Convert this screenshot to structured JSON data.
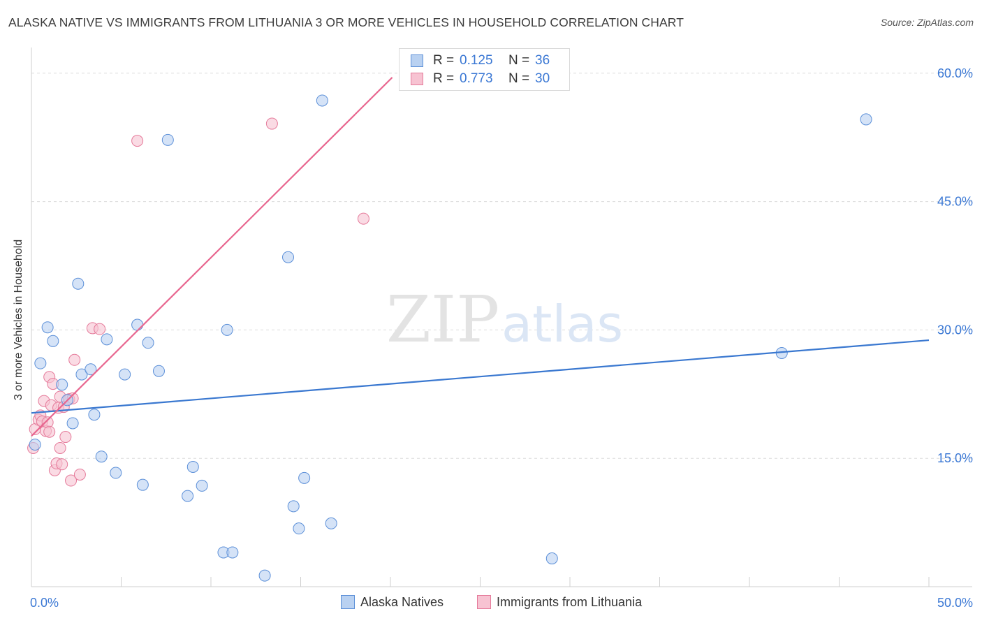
{
  "title": "ALASKA NATIVE VS IMMIGRANTS FROM LITHUANIA 3 OR MORE VEHICLES IN HOUSEHOLD CORRELATION CHART",
  "source": "Source: ZipAtlas.com",
  "watermark": {
    "zip": "ZIP",
    "atlas": "atlas"
  },
  "legend": {
    "r_label": "R =",
    "n_label": "N =",
    "series": [
      {
        "name": "Alaska Natives",
        "r": "0.125",
        "n": "36",
        "fill": "#b9d1f1",
        "stroke": "#5b8fd8"
      },
      {
        "name": "Immigrants from Lithuania",
        "r": "0.773",
        "n": "30",
        "fill": "#f7c3d2",
        "stroke": "#e57a9a"
      }
    ]
  },
  "chart_data": {
    "type": "scatter",
    "title": "ALASKA NATIVE VS IMMIGRANTS FROM LITHUANIA 3 OR MORE VEHICLES IN HOUSEHOLD CORRELATION CHART",
    "xlabel": "",
    "ylabel": "3 or more Vehicles in Household",
    "xlim": [
      0,
      50
    ],
    "ylim": [
      0,
      63
    ],
    "x_tick_labels": [
      "0.0%",
      "50.0%"
    ],
    "y_ticks": [
      15,
      30,
      45,
      60
    ],
    "y_tick_labels": [
      "15.0%",
      "30.0%",
      "45.0%",
      "60.0%"
    ],
    "grid": true,
    "series": [
      {
        "name": "Alaska Natives",
        "color": "#5b8fd8",
        "fill": "#b9d1f1",
        "trendline": {
          "x": [
            0,
            50
          ],
          "y": [
            20.3,
            28.8
          ],
          "color": "#3a78d0"
        },
        "points": [
          [
            0.2,
            16.6
          ],
          [
            0.5,
            26.1
          ],
          [
            0.9,
            30.3
          ],
          [
            1.2,
            28.7
          ],
          [
            1.7,
            23.6
          ],
          [
            2.0,
            21.8
          ],
          [
            2.3,
            19.1
          ],
          [
            2.6,
            35.4
          ],
          [
            2.8,
            24.8
          ],
          [
            3.3,
            25.4
          ],
          [
            3.5,
            20.1
          ],
          [
            3.9,
            15.2
          ],
          [
            4.2,
            28.9
          ],
          [
            4.7,
            13.3
          ],
          [
            5.2,
            24.8
          ],
          [
            5.9,
            30.6
          ],
          [
            6.2,
            11.9
          ],
          [
            6.5,
            28.5
          ],
          [
            7.1,
            25.2
          ],
          [
            7.6,
            52.2
          ],
          [
            8.7,
            10.6
          ],
          [
            9.0,
            14.0
          ],
          [
            9.5,
            11.8
          ],
          [
            10.7,
            4.0
          ],
          [
            10.9,
            30.0
          ],
          [
            11.2,
            4.0
          ],
          [
            13.0,
            1.3
          ],
          [
            14.3,
            38.5
          ],
          [
            14.6,
            9.4
          ],
          [
            14.9,
            6.8
          ],
          [
            15.2,
            12.7
          ],
          [
            16.2,
            56.8
          ],
          [
            16.7,
            7.4
          ],
          [
            29.0,
            3.3
          ],
          [
            41.8,
            27.3
          ],
          [
            46.5,
            54.6
          ]
        ]
      },
      {
        "name": "Immigrants from Lithuania",
        "color": "#e57a9a",
        "fill": "#f7c3d2",
        "trendline": {
          "x": [
            0,
            20.1
          ],
          "y": [
            17.6,
            59.5
          ],
          "color": "#e8668f"
        },
        "points": [
          [
            0.1,
            16.2
          ],
          [
            0.2,
            18.4
          ],
          [
            0.4,
            19.5
          ],
          [
            0.5,
            20.0
          ],
          [
            0.6,
            19.3
          ],
          [
            0.7,
            21.7
          ],
          [
            0.8,
            18.2
          ],
          [
            0.9,
            19.2
          ],
          [
            1.0,
            18.1
          ],
          [
            1.0,
            24.5
          ],
          [
            1.1,
            21.2
          ],
          [
            1.2,
            23.7
          ],
          [
            1.3,
            13.6
          ],
          [
            1.4,
            14.4
          ],
          [
            1.5,
            20.9
          ],
          [
            1.6,
            22.2
          ],
          [
            1.6,
            16.2
          ],
          [
            1.7,
            14.3
          ],
          [
            1.8,
            21.0
          ],
          [
            1.9,
            17.5
          ],
          [
            2.1,
            21.9
          ],
          [
            2.2,
            12.4
          ],
          [
            2.3,
            22.0
          ],
          [
            2.4,
            26.5
          ],
          [
            2.7,
            13.1
          ],
          [
            3.4,
            30.2
          ],
          [
            3.8,
            30.1
          ],
          [
            5.9,
            52.1
          ],
          [
            13.4,
            54.1
          ],
          [
            18.5,
            43.0
          ]
        ]
      }
    ]
  }
}
